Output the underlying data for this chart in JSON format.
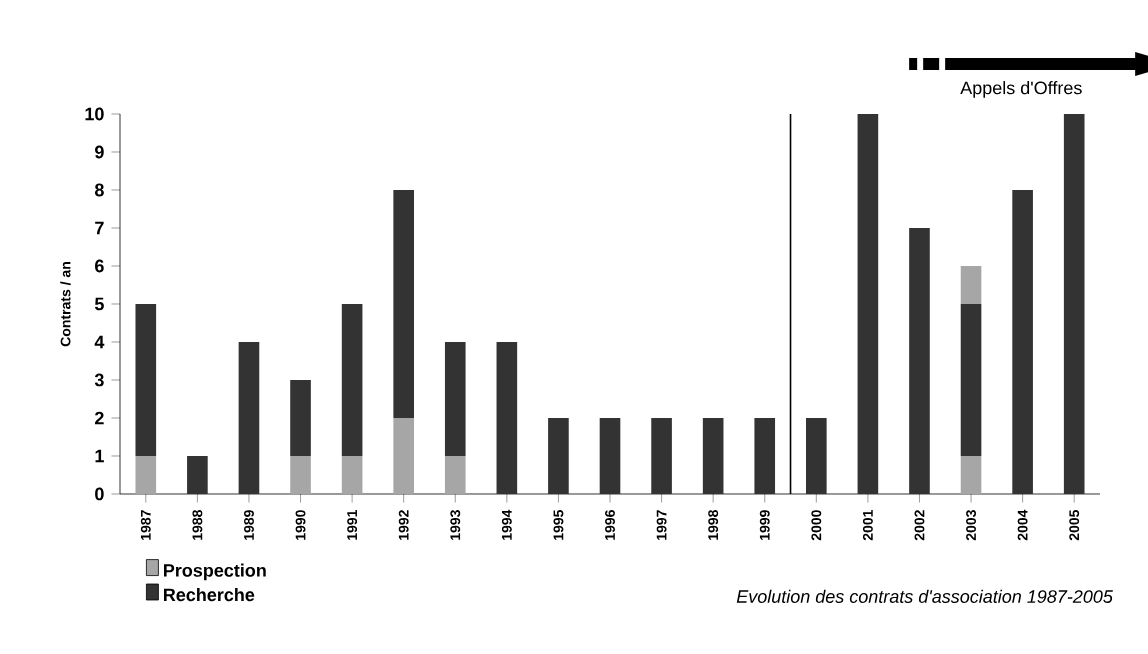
{
  "chart_data": {
    "type": "bar",
    "stacked": true,
    "ylabel": "Contrats / an",
    "categories": [
      "1987",
      "1988",
      "1989",
      "1990",
      "1991",
      "1992",
      "1993",
      "1994",
      "1995",
      "1996",
      "1997",
      "1998",
      "1999",
      "2000",
      "2001",
      "2002",
      "2003",
      "2004",
      "2005"
    ],
    "series": [
      {
        "name": "Prospection",
        "color": "#a6a6a6",
        "values": [
          1,
          0,
          0,
          1,
          1,
          2,
          1,
          0,
          0,
          0,
          0,
          0,
          0,
          0,
          0,
          0,
          1,
          0,
          0
        ]
      },
      {
        "name": "Recherche",
        "color": "#333333",
        "values": [
          4,
          1,
          4,
          2,
          4,
          6,
          3,
          4,
          2,
          2,
          2,
          2,
          2,
          2,
          10,
          7,
          4,
          8,
          10
        ]
      },
      {
        "color": "#a6a6a6",
        "values": [
          0,
          0,
          0,
          0,
          0,
          0,
          0,
          0,
          0,
          0,
          0,
          0,
          0,
          0,
          0,
          0,
          1,
          0,
          0
        ]
      }
    ],
    "ylim": [
      0,
      10
    ],
    "yticks": [
      0,
      1,
      2,
      3,
      4,
      5,
      6,
      7,
      8,
      9,
      10
    ],
    "legend": "bottom left",
    "annotations": [
      "Appels d'Offres",
      "Evolution des contrats d'association 1987-2005"
    ]
  }
}
